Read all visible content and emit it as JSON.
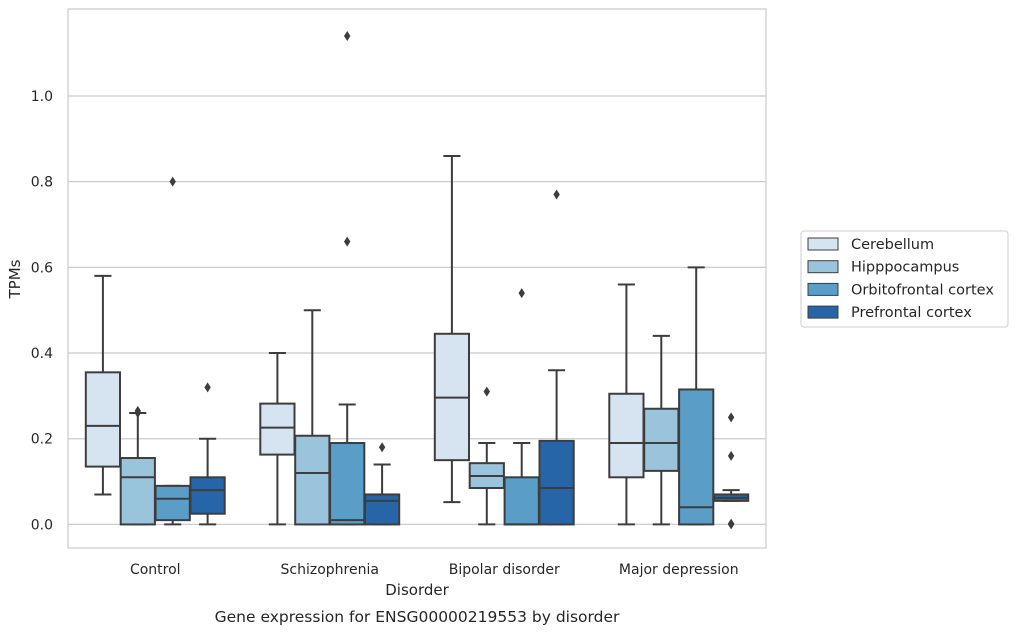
{
  "chart_data": {
    "type": "box",
    "title": "",
    "caption": "Gene expression for ENSG00000219553 by disorder",
    "xlabel": "Disorder",
    "ylabel": "TPMs",
    "ylim": [
      -0.055,
      1.203
    ],
    "yticks": [
      "0.0",
      "0.2",
      "0.4",
      "0.6",
      "0.8",
      "1.0"
    ],
    "grid": "horizontal",
    "legend_placement": "right-center",
    "categories": [
      "Control",
      "Schizophrenia",
      "Bipolar disorder",
      "Major depression"
    ],
    "series": [
      {
        "name": "Cerebellum",
        "color": "#d6e4f2",
        "boxes": [
          {
            "whislo": 0.07,
            "q1": 0.135,
            "med": 0.23,
            "q3": 0.355,
            "whishi": 0.58,
            "fliers": []
          },
          {
            "whislo": 0.0,
            "q1": 0.163,
            "med": 0.226,
            "q3": 0.282,
            "whishi": 0.4,
            "fliers": []
          },
          {
            "whislo": 0.052,
            "q1": 0.15,
            "med": 0.296,
            "q3": 0.445,
            "whishi": 0.86,
            "fliers": []
          },
          {
            "whislo": 0.0,
            "q1": 0.11,
            "med": 0.19,
            "q3": 0.305,
            "whishi": 0.56,
            "fliers": []
          }
        ]
      },
      {
        "name": "Hipppocampus",
        "color": "#9ac3dc",
        "boxes": [
          {
            "whislo": 0.0,
            "q1": 0.0,
            "med": 0.11,
            "q3": 0.155,
            "whishi": 0.26,
            "fliers": [
              0.26,
              0.265
            ]
          },
          {
            "whislo": 0.0,
            "q1": 0.0,
            "med": 0.12,
            "q3": 0.207,
            "whishi": 0.5,
            "fliers": []
          },
          {
            "whislo": 0.0,
            "q1": 0.085,
            "med": 0.113,
            "q3": 0.143,
            "whishi": 0.19,
            "fliers": [
              0.31
            ]
          },
          {
            "whislo": 0.0,
            "q1": 0.125,
            "med": 0.19,
            "q3": 0.27,
            "whishi": 0.44,
            "fliers": []
          }
        ]
      },
      {
        "name": "Orbitofrontal cortex",
        "color": "#5a9ec8",
        "boxes": [
          {
            "whislo": 0.0,
            "q1": 0.01,
            "med": 0.06,
            "q3": 0.09,
            "whishi": 0.09,
            "fliers": [
              0.8
            ]
          },
          {
            "whislo": 0.0,
            "q1": 0.0,
            "med": 0.01,
            "q3": 0.19,
            "whishi": 0.28,
            "fliers": [
              0.66,
              1.14
            ]
          },
          {
            "whislo": 0.0,
            "q1": 0.0,
            "med": 0.0,
            "q3": 0.11,
            "whishi": 0.19,
            "fliers": [
              0.54
            ]
          },
          {
            "whislo": 0.0,
            "q1": 0.0,
            "med": 0.04,
            "q3": 0.315,
            "whishi": 0.6,
            "fliers": []
          }
        ]
      },
      {
        "name": "Prefrontal cortex",
        "color": "#2666a8",
        "boxes": [
          {
            "whislo": 0.0,
            "q1": 0.025,
            "med": 0.08,
            "q3": 0.11,
            "whishi": 0.2,
            "fliers": [
              0.32
            ]
          },
          {
            "whislo": 0.0,
            "q1": 0.0,
            "med": 0.055,
            "q3": 0.07,
            "whishi": 0.14,
            "fliers": [
              0.18
            ]
          },
          {
            "whislo": 0.0,
            "q1": 0.0,
            "med": 0.085,
            "q3": 0.195,
            "whishi": 0.36,
            "fliers": [
              0.77
            ]
          },
          {
            "whislo": 0.055,
            "q1": 0.055,
            "med": 0.062,
            "q3": 0.07,
            "whishi": 0.08,
            "fliers": [
              0.0,
              0.002,
              0.16,
              0.25
            ]
          }
        ]
      }
    ]
  }
}
